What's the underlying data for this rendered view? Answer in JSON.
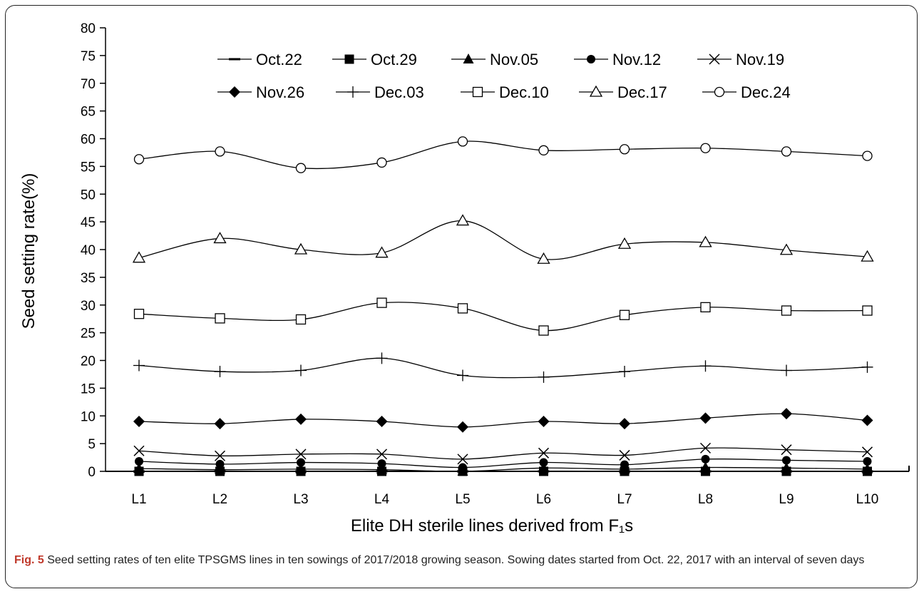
{
  "chart_data": {
    "type": "line",
    "categories": [
      "L1",
      "L2",
      "L3",
      "L4",
      "L5",
      "L6",
      "L7",
      "L8",
      "L9",
      "L10"
    ],
    "xlabel": "Elite DH sterile lines derived from F₁s",
    "ylabel": "Seed setting rate(%)",
    "ylim": [
      0,
      80
    ],
    "yticks": [
      0,
      5,
      10,
      15,
      20,
      25,
      30,
      35,
      40,
      45,
      50,
      55,
      60,
      65,
      70,
      75,
      80
    ],
    "legend_position": "top",
    "series": [
      {
        "name": "Oct.22",
        "marker": "dash",
        "values": [
          0,
          0,
          0,
          0,
          0,
          0,
          0,
          0,
          0,
          0
        ]
      },
      {
        "name": "Oct.29",
        "marker": "filled-square",
        "values": [
          0,
          0,
          0,
          0,
          0,
          0,
          0,
          0,
          0,
          0
        ]
      },
      {
        "name": "Nov.05",
        "marker": "filled-triangle",
        "values": [
          0.5,
          0.3,
          0.4,
          0.3,
          0,
          0.6,
          0.4,
          0.7,
          0.6,
          0.4
        ]
      },
      {
        "name": "Nov.12",
        "marker": "filled-circle",
        "values": [
          1.8,
          1.3,
          1.6,
          1.4,
          0.7,
          1.6,
          1.2,
          2.2,
          2.0,
          1.8
        ]
      },
      {
        "name": "Nov.19",
        "marker": "cross",
        "values": [
          3.7,
          2.8,
          3.1,
          3.1,
          2.2,
          3.3,
          2.9,
          4.2,
          3.9,
          3.5
        ]
      },
      {
        "name": "Nov.26",
        "marker": "filled-diamond",
        "values": [
          9.0,
          8.6,
          9.4,
          9.0,
          8.0,
          9.0,
          8.6,
          9.6,
          10.4,
          9.2
        ]
      },
      {
        "name": "Dec.03",
        "marker": "plus",
        "values": [
          19.1,
          18.0,
          18.2,
          20.4,
          17.3,
          17.0,
          18.0,
          19.0,
          18.2,
          18.8
        ]
      },
      {
        "name": "Dec.10",
        "marker": "open-square",
        "values": [
          28.4,
          27.6,
          27.4,
          30.4,
          29.4,
          25.4,
          28.2,
          29.6,
          29.0,
          29.0
        ]
      },
      {
        "name": "Dec.17",
        "marker": "open-triangle",
        "values": [
          38.5,
          42.0,
          40.0,
          39.4,
          45.2,
          38.3,
          41.0,
          41.3,
          39.9,
          38.7
        ]
      },
      {
        "name": "Dec.24",
        "marker": "open-circle",
        "values": [
          56.3,
          57.7,
          54.7,
          55.7,
          59.5,
          57.9,
          58.1,
          58.3,
          57.7,
          56.9
        ]
      }
    ]
  },
  "caption": {
    "label": "Fig. 5",
    "text": " Seed setting rates of ten elite TPSGMS lines in ten sowings of 2017/2018 growing season. Sowing dates started from Oct. 22, 2017 with an interval of seven days"
  }
}
